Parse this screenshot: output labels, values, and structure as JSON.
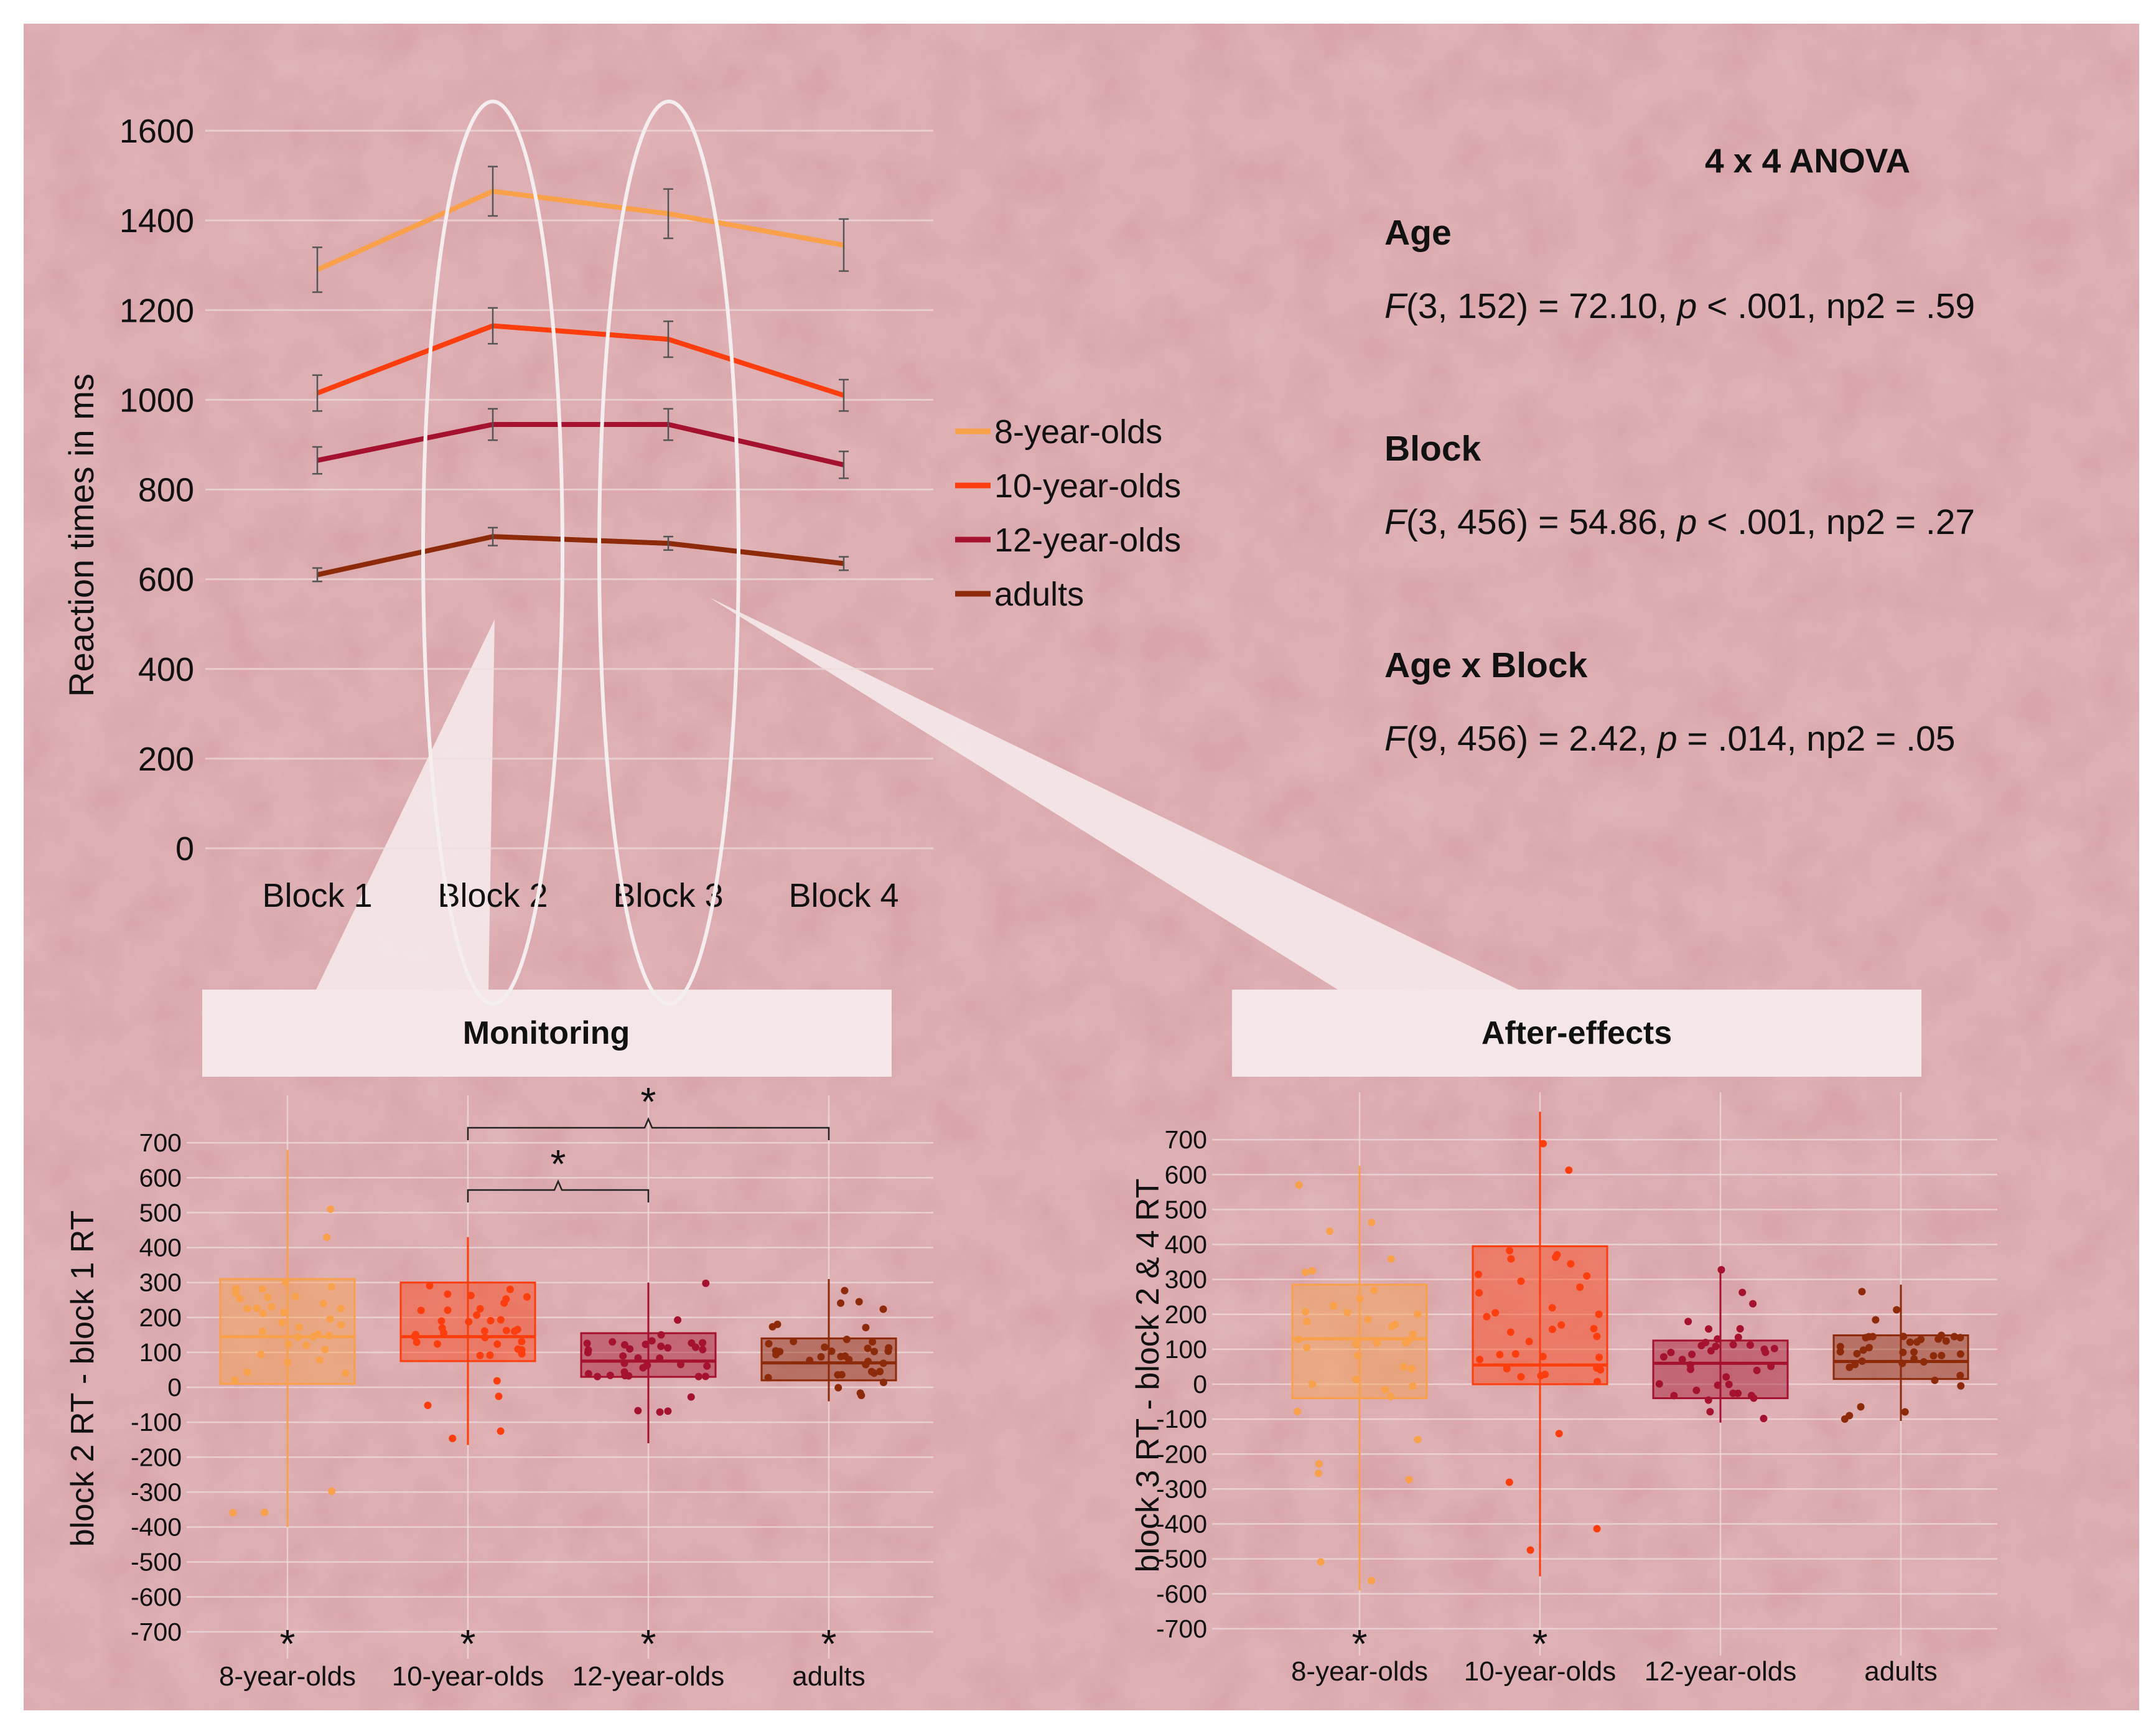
{
  "colors": {
    "background": "#d9a3a8",
    "grid": "#efdcdd",
    "eight": "#f9a04a",
    "ten": "#fc3d0e",
    "twelve": "#a4122f",
    "adults": "#8c2a0a",
    "callout": "#f5e9ea",
    "ellipse": "#f4eeee",
    "text": "#111111"
  },
  "chart_data": [
    {
      "type": "line",
      "title": "",
      "ylabel": "Reaction times in ms",
      "ylim": [
        0,
        1600
      ],
      "yticks": [
        0,
        200,
        400,
        600,
        800,
        1000,
        1200,
        1400,
        1600
      ],
      "categories": [
        "Block 1",
        "Block 2",
        "Block 3",
        "Block 4"
      ],
      "grid": true,
      "legend": "right",
      "series": [
        {
          "name": "8-year-olds",
          "values": [
            1290,
            1465,
            1415,
            1345
          ],
          "errors": [
            50,
            55,
            55,
            58
          ]
        },
        {
          "name": "10-year-olds",
          "values": [
            1015,
            1165,
            1135,
            1010
          ],
          "errors": [
            40,
            40,
            40,
            35
          ]
        },
        {
          "name": "12-year-olds",
          "values": [
            865,
            945,
            945,
            855
          ],
          "errors": [
            30,
            35,
            35,
            30
          ]
        },
        {
          "name": "adults",
          "values": [
            610,
            695,
            680,
            635
          ],
          "errors": [
            15,
            20,
            15,
            15
          ]
        }
      ]
    },
    {
      "type": "box",
      "title": "Monitoring",
      "ylabel": "block 2 RT - block 1 RT",
      "ylim": [
        -750,
        800
      ],
      "yticks": [
        -700,
        -600,
        -500,
        -400,
        -300,
        -200,
        -100,
        0,
        100,
        200,
        300,
        400,
        500,
        600,
        700
      ],
      "categories": [
        "8-year-olds",
        "10-year-olds",
        "12-year-olds",
        "adults"
      ],
      "boxes": [
        {
          "min": -400,
          "q1": 10,
          "median": 145,
          "q3": 310,
          "max": 680
        },
        {
          "min": -165,
          "q1": 75,
          "median": 145,
          "q3": 300,
          "max": 430
        },
        {
          "min": -160,
          "q1": 30,
          "median": 75,
          "q3": 155,
          "max": 300
        },
        {
          "min": -40,
          "q1": 20,
          "median": 70,
          "q3": 140,
          "max": 310
        }
      ],
      "significance_marks": [
        "*",
        "*",
        "*",
        "*"
      ],
      "brackets": [
        {
          "from": 1,
          "to": 2,
          "label": "*"
        },
        {
          "from": 1,
          "to": 3,
          "label": "*"
        }
      ]
    },
    {
      "type": "box",
      "title": "After-effects",
      "ylabel": "block 3 RT - block 2 & 4 RT",
      "ylim": [
        -750,
        800
      ],
      "yticks": [
        -700,
        -600,
        -500,
        -400,
        -300,
        -200,
        -100,
        0,
        100,
        200,
        300,
        400,
        500,
        600,
        700
      ],
      "categories": [
        "8-year-olds",
        "10-year-olds",
        "12-year-olds",
        "adults"
      ],
      "boxes": [
        {
          "min": -590,
          "q1": -40,
          "median": 130,
          "q3": 285,
          "max": 625
        },
        {
          "min": -550,
          "q1": 0,
          "median": 55,
          "q3": 395,
          "max": 780
        },
        {
          "min": -110,
          "q1": -40,
          "median": 60,
          "q3": 125,
          "max": 335
        },
        {
          "min": -105,
          "q1": 15,
          "median": 65,
          "q3": 140,
          "max": 285
        }
      ],
      "significance_marks": [
        "*",
        "*",
        "",
        ""
      ],
      "brackets": []
    }
  ],
  "anova": {
    "title": "4 x 4 ANOVA",
    "rows": [
      {
        "heading": "Age",
        "F": "F",
        "stat": "(3, 152) = 72.10, ",
        "p": "p",
        "rest": " < .001, np2 = .59"
      },
      {
        "heading": "Block",
        "F": "F",
        "stat": "(3, 456) = 54.86, ",
        "p": "p",
        "rest": " < .001, np2 = .27"
      },
      {
        "heading": "Age x Block",
        "F": "F",
        "stat": "(9, 456) =   2.42, ",
        "p": "p",
        "rest": " = .014, np2 = .05"
      }
    ]
  }
}
